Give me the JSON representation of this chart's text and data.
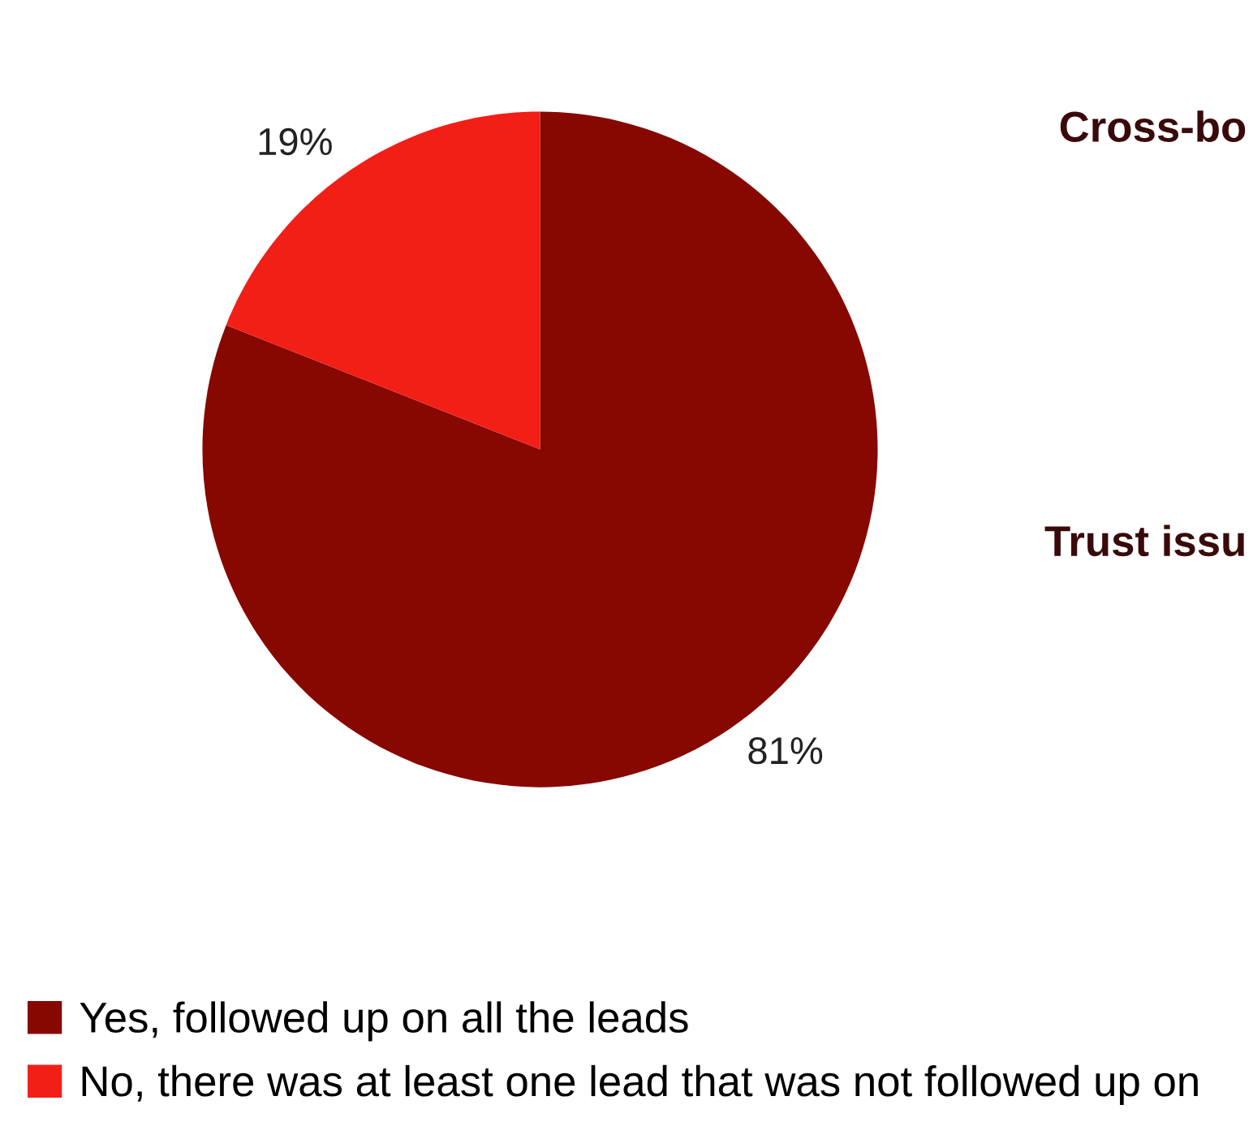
{
  "chart_data": {
    "type": "pie",
    "categories": [
      "Yes, followed up on all the leads",
      "No, there was at least one lead that was not followed up on"
    ],
    "values": [
      81,
      19
    ],
    "colors": [
      "#870800",
      "#f21f17"
    ],
    "value_labels": [
      "81%",
      "19%"
    ],
    "legend": "bottom",
    "annotations": [
      "Cross-bo",
      "Trust issu"
    ]
  }
}
